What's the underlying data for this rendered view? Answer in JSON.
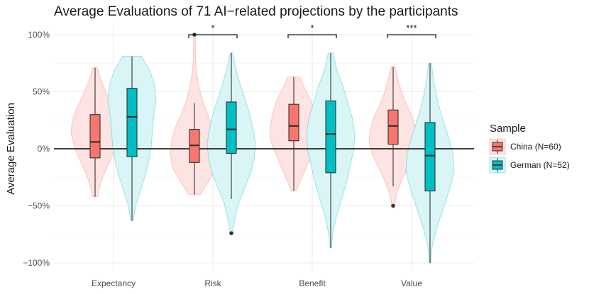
{
  "chart_data": {
    "type": "violin",
    "title": "Average Evaluations of  71 AI−related projections by the participants",
    "ylabel": "Average Evaluation",
    "xlabel": "",
    "categories": [
      "Expectancy",
      "Risk",
      "Benefit",
      "Value"
    ],
    "ylim": [
      -100,
      100
    ],
    "yticks": [
      -100,
      -50,
      0,
      50,
      100
    ],
    "ytick_labels": [
      "−100%",
      "−50%",
      "0%",
      "50%",
      "100%"
    ],
    "grid": true,
    "reference_line_y": 0,
    "legend": {
      "title": "Sample",
      "placement": "right"
    },
    "series": [
      {
        "name": "China (N=60)",
        "color": "#F8766D",
        "violin_fill": "#FDE3E1",
        "boxes": [
          {
            "whisker_low": -42,
            "q1": -8,
            "median": 6,
            "q3": 30,
            "whisker_high": 71,
            "outliers": []
          },
          {
            "whisker_low": -40,
            "q1": -12,
            "median": 3,
            "q3": 17,
            "whisker_high": 40,
            "outliers": [
              100
            ]
          },
          {
            "whisker_low": -37,
            "q1": 7,
            "median": 20,
            "q3": 39,
            "whisker_high": 63,
            "outliers": []
          },
          {
            "whisker_low": -33,
            "q1": 4,
            "median": 20,
            "q3": 34,
            "whisker_high": 72,
            "outliers": [
              -50
            ]
          }
        ],
        "density": [
          {
            "ymin": -42,
            "ymax": 71,
            "widths": [
              0.1,
              0.2,
              0.35,
              0.55,
              0.75,
              0.9,
              1.0,
              0.95,
              0.8,
              0.6,
              0.4,
              0.22,
              0.1
            ]
          },
          {
            "ymin": -40,
            "ymax": 100,
            "widths": [
              0.25,
              0.6,
              0.9,
              1.0,
              0.95,
              0.8,
              0.55,
              0.35,
              0.2,
              0.1,
              0.05,
              0.04,
              0.03
            ]
          },
          {
            "ymin": -37,
            "ymax": 63,
            "widths": [
              0.1,
              0.3,
              0.5,
              0.7,
              0.9,
              1.0,
              0.95,
              0.85,
              0.7,
              0.45,
              0.25
            ]
          },
          {
            "ymin": -50,
            "ymax": 72,
            "widths": [
              0.05,
              0.15,
              0.35,
              0.6,
              0.85,
              1.0,
              0.95,
              0.8,
              0.55,
              0.35,
              0.2,
              0.08
            ]
          }
        ]
      },
      {
        "name": "German (N=52)",
        "color": "#00BFC4",
        "violin_fill": "#D9F5F6",
        "boxes": [
          {
            "whisker_low": -63,
            "q1": -7,
            "median": 28,
            "q3": 53,
            "whisker_high": 81,
            "outliers": []
          },
          {
            "whisker_low": -44,
            "q1": -4,
            "median": 17,
            "q3": 41,
            "whisker_high": 84,
            "outliers": [
              -74
            ]
          },
          {
            "whisker_low": -87,
            "q1": -21,
            "median": 13,
            "q3": 42,
            "whisker_high": 84,
            "outliers": []
          },
          {
            "whisker_low": -100,
            "q1": -37,
            "median": -6,
            "q3": 23,
            "whisker_high": 75,
            "outliers": []
          }
        ],
        "density": [
          {
            "ymin": -63,
            "ymax": 81,
            "widths": [
              0.05,
              0.15,
              0.35,
              0.55,
              0.7,
              0.8,
              0.85,
              0.9,
              1.0,
              0.95,
              0.75,
              0.4
            ]
          },
          {
            "ymin": -74,
            "ymax": 84,
            "widths": [
              0.05,
              0.15,
              0.3,
              0.55,
              0.8,
              0.95,
              1.0,
              0.9,
              0.75,
              0.55,
              0.35,
              0.18,
              0.05
            ]
          },
          {
            "ymin": -87,
            "ymax": 84,
            "widths": [
              0.03,
              0.1,
              0.25,
              0.45,
              0.65,
              0.8,
              0.95,
              1.0,
              0.9,
              0.7,
              0.5,
              0.25,
              0.1
            ]
          },
          {
            "ymin": -100,
            "ymax": 75,
            "widths": [
              0.02,
              0.1,
              0.3,
              0.55,
              0.8,
              1.0,
              0.95,
              0.75,
              0.5,
              0.3,
              0.15,
              0.06
            ]
          }
        ]
      }
    ],
    "significance": [
      {
        "category": "Risk",
        "label": "*"
      },
      {
        "category": "Benefit",
        "label": "*"
      },
      {
        "category": "Value",
        "label": "***"
      }
    ]
  }
}
